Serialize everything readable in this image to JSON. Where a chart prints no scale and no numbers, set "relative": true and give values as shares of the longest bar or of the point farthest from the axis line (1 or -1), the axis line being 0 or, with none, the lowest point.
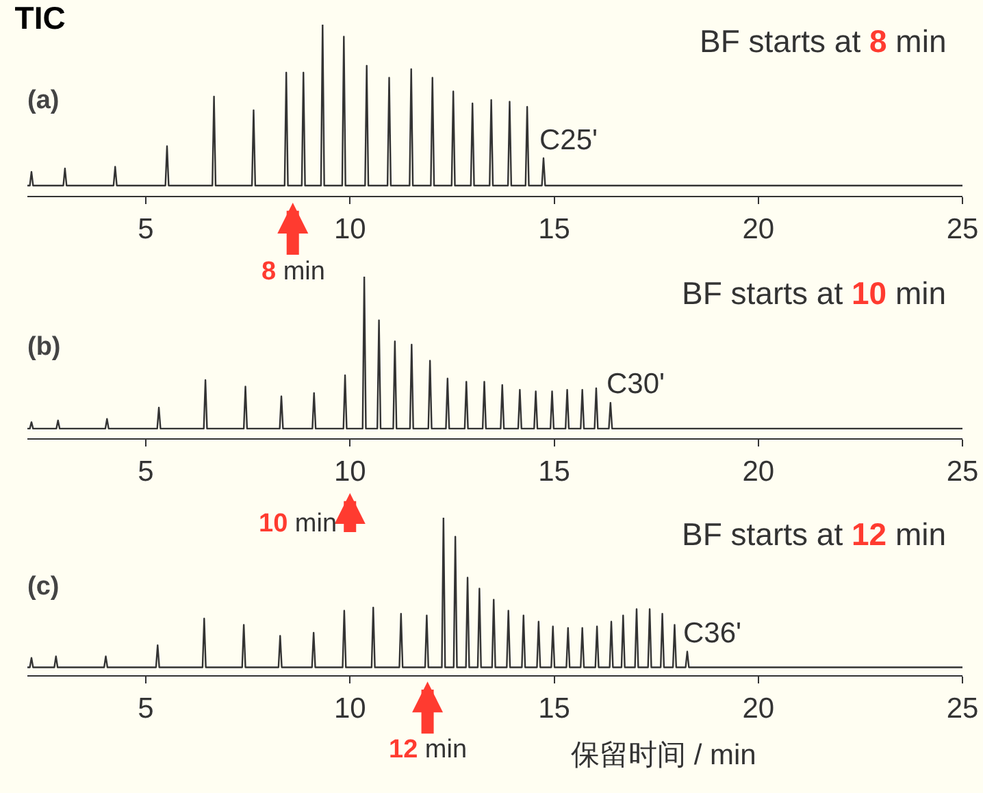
{
  "chart_data": [
    {
      "type": "line",
      "title": "TIC",
      "relative": true,
      "xlim": [
        2.1,
        25
      ],
      "xticks": [
        5,
        10,
        15,
        20,
        25
      ],
      "annotations": [
        "(a)",
        "BF starts at 8 min",
        {
          "text": "C25'",
          "x": 14.74,
          "y": 0.22
        }
      ],
      "ref_lines": [
        {
          "axis": "x",
          "value": 8.6,
          "label": "8 min",
          "color": "#ff3b30"
        }
      ],
      "series": [
        {
          "color": "#333333",
          "x": [
            2.1,
            2.16,
            2.2,
            2.24,
            2.98,
            3.02,
            3.06,
            4.21,
            4.25,
            4.29,
            5.48,
            5.52,
            5.56,
            6.63,
            6.67,
            6.71,
            7.6,
            7.64,
            7.68,
            8.4,
            8.44,
            8.48,
            8.82,
            8.86,
            8.9,
            9.29,
            9.33,
            9.37,
            9.81,
            9.85,
            9.89,
            10.37,
            10.41,
            10.45,
            10.92,
            10.96,
            11.0,
            11.46,
            11.5,
            11.54,
            11.98,
            12.02,
            12.06,
            12.49,
            12.53,
            12.57,
            12.96,
            13.0,
            13.04,
            13.42,
            13.46,
            13.5,
            13.87,
            13.91,
            13.95,
            14.3,
            14.34,
            14.38,
            14.7,
            14.74,
            14.78,
            25
          ],
          "values": [
            0.06,
            0.06,
            0.14,
            0.06,
            0.06,
            0.16,
            0.06,
            0.06,
            0.17,
            0.06,
            0.06,
            0.29,
            0.06,
            0.06,
            0.58,
            0.06,
            0.06,
            0.5,
            0.06,
            0.06,
            0.72,
            0.06,
            0.06,
            0.72,
            0.06,
            0.06,
            1,
            0.06,
            0.06,
            0.93,
            0.06,
            0.06,
            0.76,
            0.06,
            0.06,
            0.69,
            0.06,
            0.06,
            0.74,
            0.06,
            0.06,
            0.69,
            0.06,
            0.06,
            0.61,
            0.06,
            0.06,
            0.54,
            0.06,
            0.06,
            0.56,
            0.06,
            0.06,
            0.55,
            0.06,
            0.06,
            0.52,
            0.06,
            0.06,
            0.22,
            0.06,
            0.06
          ]
        }
      ]
    },
    {
      "type": "line",
      "relative": true,
      "xlim": [
        2.1,
        25
      ],
      "xticks": [
        5,
        10,
        15,
        20,
        25
      ],
      "annotations": [
        "(b)",
        "BF starts at 10 min",
        {
          "text": "C30'",
          "x": 16.38,
          "y": 0.22
        }
      ],
      "ref_lines": [
        {
          "axis": "x",
          "value": 10.0,
          "label": "10 min",
          "color": "#ff3b30"
        }
      ],
      "series": [
        {
          "color": "#333333",
          "x": [
            2.1,
            2.16,
            2.2,
            2.24,
            2.81,
            2.85,
            2.89,
            4.01,
            4.05,
            4.09,
            5.28,
            5.32,
            5.36,
            6.42,
            6.46,
            6.5,
            7.4,
            7.44,
            7.48,
            8.28,
            8.32,
            8.36,
            9.08,
            9.12,
            9.16,
            9.84,
            9.88,
            9.92,
            10.31,
            10.35,
            10.39,
            10.67,
            10.71,
            10.75,
            11.06,
            11.1,
            11.14,
            11.47,
            11.51,
            11.55,
            11.92,
            11.96,
            12.0,
            12.35,
            12.39,
            12.43,
            12.81,
            12.85,
            12.89,
            13.25,
            13.29,
            13.33,
            13.69,
            13.73,
            13.77,
            14.12,
            14.16,
            14.2,
            14.51,
            14.55,
            14.59,
            14.91,
            14.95,
            14.99,
            15.28,
            15.32,
            15.36,
            15.65,
            15.69,
            15.73,
            15.99,
            16.03,
            16.07,
            16.34,
            16.38,
            16.42,
            25
          ],
          "values": [
            0.06,
            0.06,
            0.1,
            0.06,
            0.06,
            0.11,
            0.06,
            0.06,
            0.12,
            0.06,
            0.06,
            0.19,
            0.06,
            0.06,
            0.36,
            0.06,
            0.06,
            0.32,
            0.06,
            0.06,
            0.26,
            0.06,
            0.06,
            0.28,
            0.06,
            0.06,
            0.39,
            0.06,
            0.06,
            1,
            0.06,
            0.06,
            0.73,
            0.06,
            0.06,
            0.6,
            0.06,
            0.06,
            0.58,
            0.06,
            0.06,
            0.48,
            0.06,
            0.06,
            0.37,
            0.06,
            0.06,
            0.35,
            0.06,
            0.06,
            0.35,
            0.06,
            0.06,
            0.33,
            0.06,
            0.06,
            0.3,
            0.06,
            0.06,
            0.29,
            0.06,
            0.06,
            0.29,
            0.06,
            0.06,
            0.3,
            0.06,
            0.06,
            0.3,
            0.06,
            0.06,
            0.31,
            0.06,
            0.06,
            0.22,
            0.06,
            0.06
          ]
        }
      ]
    },
    {
      "type": "line",
      "relative": true,
      "xlim": [
        2.1,
        25
      ],
      "xticks": [
        5,
        10,
        15,
        20,
        25
      ],
      "xlabel": "保留时间 / min",
      "annotations": [
        "(c)",
        "BF starts at 12 min",
        {
          "text": "C36'",
          "x": 18.26,
          "y": 0.15
        }
      ],
      "ref_lines": [
        {
          "axis": "x",
          "value": 11.9,
          "label": "12 min",
          "color": "#ff3b30"
        }
      ],
      "series": [
        {
          "color": "#333333",
          "x": [
            2.1,
            2.16,
            2.2,
            2.24,
            2.76,
            2.8,
            2.84,
            3.98,
            4.02,
            4.06,
            5.25,
            5.29,
            5.33,
            6.39,
            6.43,
            6.47,
            7.36,
            7.4,
            7.44,
            8.25,
            8.29,
            8.33,
            9.07,
            9.11,
            9.15,
            9.82,
            9.86,
            9.9,
            10.53,
            10.57,
            10.61,
            11.21,
            11.25,
            11.29,
            11.84,
            11.88,
            11.92,
            12.25,
            12.29,
            12.33,
            12.54,
            12.58,
            12.62,
            12.84,
            12.88,
            12.92,
            13.13,
            13.17,
            13.21,
            13.48,
            13.52,
            13.56,
            13.84,
            13.88,
            13.92,
            14.21,
            14.25,
            14.29,
            14.58,
            14.62,
            14.66,
            14.93,
            14.97,
            15.01,
            15.3,
            15.34,
            15.38,
            15.65,
            15.69,
            15.73,
            16.01,
            16.05,
            16.09,
            16.36,
            16.4,
            16.44,
            16.65,
            16.69,
            16.73,
            16.98,
            17.02,
            17.06,
            17.3,
            17.34,
            17.38,
            17.61,
            17.65,
            17.69,
            17.91,
            17.95,
            17.99,
            18.22,
            18.26,
            18.3,
            25
          ],
          "values": [
            0.05,
            0.05,
            0.11,
            0.05,
            0.05,
            0.12,
            0.05,
            0.05,
            0.12,
            0.05,
            0.05,
            0.19,
            0.05,
            0.05,
            0.36,
            0.05,
            0.05,
            0.32,
            0.05,
            0.05,
            0.25,
            0.05,
            0.05,
            0.27,
            0.05,
            0.05,
            0.41,
            0.05,
            0.05,
            0.43,
            0.05,
            0.05,
            0.39,
            0.05,
            0.05,
            0.38,
            0.05,
            0.05,
            1,
            0.05,
            0.05,
            0.88,
            0.05,
            0.05,
            0.62,
            0.05,
            0.05,
            0.55,
            0.05,
            0.05,
            0.48,
            0.05,
            0.05,
            0.41,
            0.05,
            0.05,
            0.38,
            0.05,
            0.05,
            0.34,
            0.05,
            0.05,
            0.31,
            0.05,
            0.05,
            0.3,
            0.05,
            0.05,
            0.3,
            0.05,
            0.05,
            0.31,
            0.05,
            0.05,
            0.34,
            0.05,
            0.05,
            0.38,
            0.05,
            0.05,
            0.42,
            0.05,
            0.05,
            0.42,
            0.05,
            0.05,
            0.39,
            0.05,
            0.05,
            0.32,
            0.05,
            0.05,
            0.15,
            0.05,
            0.05
          ]
        }
      ]
    }
  ]
}
